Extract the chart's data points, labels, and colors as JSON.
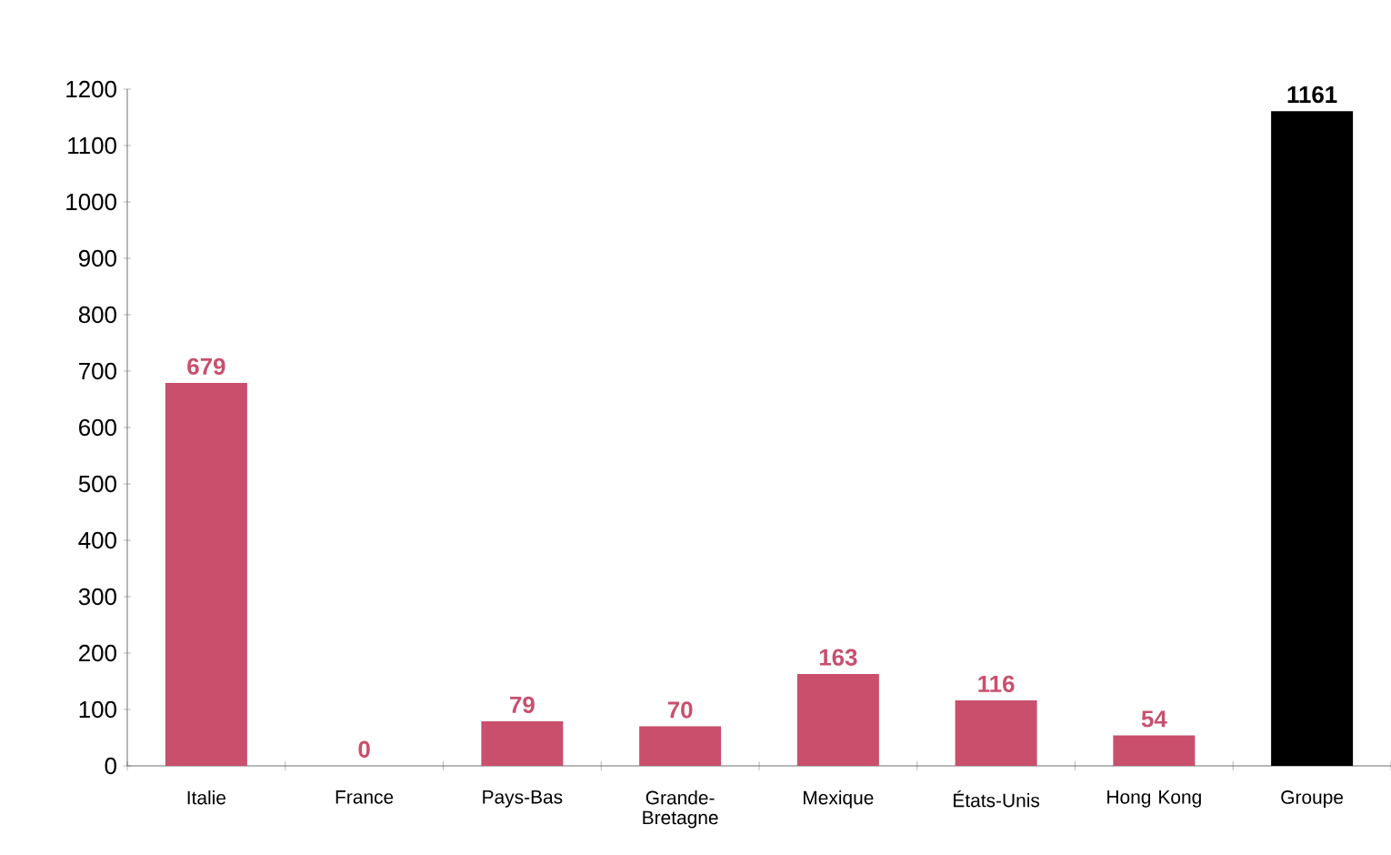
{
  "chart_data": {
    "type": "bar",
    "categories": [
      "Italie",
      "France",
      "Pays-Bas",
      "Grande-Bretagne",
      "Mexique",
      "États-Unis",
      "Hong Kong",
      "Groupe"
    ],
    "values": [
      679,
      0,
      79,
      70,
      163,
      116,
      54,
      1161
    ],
    "colors": [
      "#c94f6d",
      "#c94f6d",
      "#c94f6d",
      "#c94f6d",
      "#c94f6d",
      "#c94f6d",
      "#c94f6d",
      "#000000"
    ],
    "ylim": [
      0,
      1200
    ],
    "yticks": [
      0,
      100,
      200,
      300,
      400,
      500,
      600,
      700,
      800,
      900,
      1000,
      1100,
      1200
    ],
    "data_labels": true
  }
}
